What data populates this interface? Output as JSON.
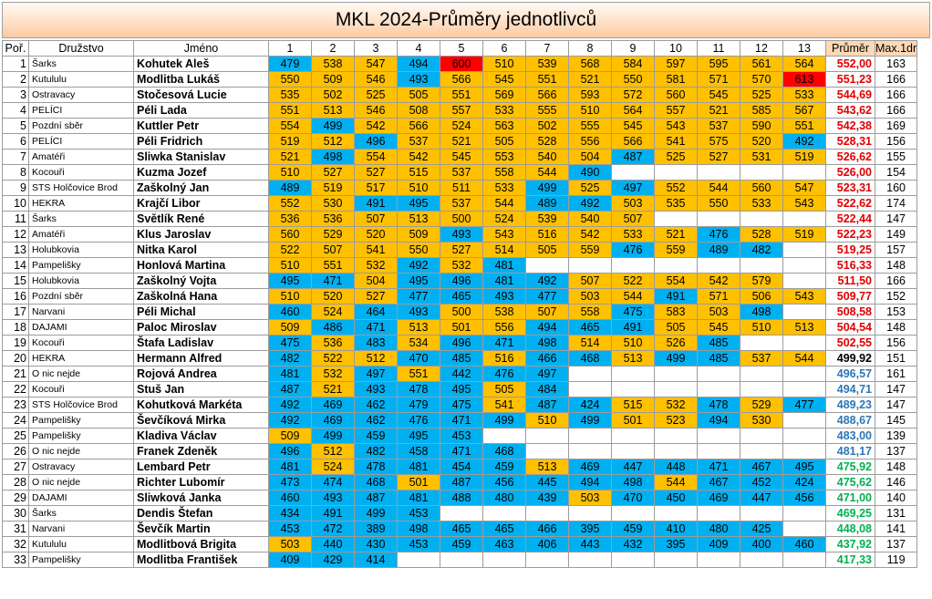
{
  "title": "MKL 2024-Průměry jednotlivců",
  "headers": {
    "por": "Poř.",
    "team": "Družstvo",
    "name": "Jméno",
    "rounds": [
      "1",
      "2",
      "3",
      "4",
      "5",
      "6",
      "7",
      "8",
      "9",
      "10",
      "11",
      "12",
      "13"
    ],
    "avg": "Průměr",
    "max": "Max.1dr"
  },
  "colors": {
    "above_avg": "#ffc000",
    "below_avg": "#00b0f0",
    "best": "#ff0000",
    "avg_red": "#e00000",
    "avg_black": "#000000",
    "avg_blue": "#2e75b6",
    "avg_green": "#00b050"
  },
  "rows": [
    {
      "por": "1",
      "team": "Šarks",
      "name": "Kohutek Aleš",
      "scores": [
        "479",
        "538",
        "547",
        "494",
        "600",
        "510",
        "539",
        "568",
        "584",
        "597",
        "595",
        "561",
        "564"
      ],
      "colors": [
        "b",
        "o",
        "o",
        "b",
        "r",
        "o",
        "o",
        "o",
        "o",
        "o",
        "o",
        "o",
        "o"
      ],
      "avg": "552,00",
      "avg_color": "red",
      "max": "163"
    },
    {
      "por": "2",
      "team": "Kutululu",
      "name": "Modlitba Lukáš",
      "scores": [
        "550",
        "509",
        "546",
        "493",
        "566",
        "545",
        "551",
        "521",
        "550",
        "581",
        "571",
        "570",
        "613"
      ],
      "colors": [
        "o",
        "o",
        "o",
        "b",
        "o",
        "o",
        "o",
        "o",
        "o",
        "o",
        "o",
        "o",
        "r"
      ],
      "avg": "551,23",
      "avg_color": "red",
      "max": "166"
    },
    {
      "por": "3",
      "team": "Ostravacy",
      "name": "Stočesová Lucie",
      "scores": [
        "535",
        "502",
        "525",
        "505",
        "551",
        "569",
        "566",
        "593",
        "572",
        "560",
        "545",
        "525",
        "533"
      ],
      "colors": [
        "o",
        "o",
        "o",
        "o",
        "o",
        "o",
        "o",
        "o",
        "o",
        "o",
        "o",
        "o",
        "o"
      ],
      "avg": "544,69",
      "avg_color": "red",
      "max": "166"
    },
    {
      "por": "4",
      "team": "PELÍCI",
      "name": "Péli Lada",
      "scores": [
        "551",
        "513",
        "546",
        "508",
        "557",
        "533",
        "555",
        "510",
        "564",
        "557",
        "521",
        "585",
        "567"
      ],
      "colors": [
        "o",
        "o",
        "o",
        "o",
        "o",
        "o",
        "o",
        "o",
        "o",
        "o",
        "o",
        "o",
        "o"
      ],
      "avg": "543,62",
      "avg_color": "red",
      "max": "166"
    },
    {
      "por": "5",
      "team": "Pozdní sběr",
      "name": "Kuttler Petr",
      "scores": [
        "554",
        "499",
        "542",
        "566",
        "524",
        "563",
        "502",
        "555",
        "545",
        "543",
        "537",
        "590",
        "551"
      ],
      "colors": [
        "o",
        "b",
        "o",
        "o",
        "o",
        "o",
        "o",
        "o",
        "o",
        "o",
        "o",
        "o",
        "o"
      ],
      "avg": "542,38",
      "avg_color": "red",
      "max": "169"
    },
    {
      "por": "6",
      "team": "PELÍCI",
      "name": "Péli Fridrich",
      "scores": [
        "519",
        "512",
        "496",
        "537",
        "521",
        "505",
        "528",
        "556",
        "566",
        "541",
        "575",
        "520",
        "492"
      ],
      "colors": [
        "o",
        "o",
        "b",
        "o",
        "o",
        "o",
        "o",
        "o",
        "o",
        "o",
        "o",
        "o",
        "b"
      ],
      "avg": "528,31",
      "avg_color": "red",
      "max": "156"
    },
    {
      "por": "7",
      "team": "Amatéři",
      "name": "Sliwka Stanislav",
      "scores": [
        "521",
        "498",
        "554",
        "542",
        "545",
        "553",
        "540",
        "504",
        "487",
        "525",
        "527",
        "531",
        "519"
      ],
      "colors": [
        "o",
        "b",
        "o",
        "o",
        "o",
        "o",
        "o",
        "o",
        "b",
        "o",
        "o",
        "o",
        "o"
      ],
      "avg": "526,62",
      "avg_color": "red",
      "max": "155"
    },
    {
      "por": "8",
      "team": "Kocouři",
      "name": "Kuzma Jozef",
      "scores": [
        "510",
        "527",
        "527",
        "515",
        "537",
        "558",
        "544",
        "490",
        "",
        "",
        "",
        "",
        ""
      ],
      "colors": [
        "o",
        "o",
        "o",
        "o",
        "o",
        "o",
        "o",
        "b",
        "w",
        "w",
        "w",
        "w",
        "w"
      ],
      "avg": "526,00",
      "avg_color": "red",
      "max": "154"
    },
    {
      "por": "9",
      "team": "STS Holčovice Brod",
      "name": "Zaškolný Jan",
      "scores": [
        "489",
        "519",
        "517",
        "510",
        "511",
        "533",
        "499",
        "525",
        "497",
        "552",
        "544",
        "560",
        "547"
      ],
      "colors": [
        "b",
        "o",
        "o",
        "o",
        "o",
        "o",
        "b",
        "o",
        "b",
        "o",
        "o",
        "o",
        "o"
      ],
      "avg": "523,31",
      "avg_color": "red",
      "max": "160"
    },
    {
      "por": "10",
      "team": "HEKRA",
      "name": "Krajčí Libor",
      "scores": [
        "552",
        "530",
        "491",
        "495",
        "537",
        "544",
        "489",
        "492",
        "503",
        "535",
        "550",
        "533",
        "543"
      ],
      "colors": [
        "o",
        "o",
        "b",
        "b",
        "o",
        "o",
        "b",
        "b",
        "o",
        "o",
        "o",
        "o",
        "o"
      ],
      "avg": "522,62",
      "avg_color": "red",
      "max": "174"
    },
    {
      "por": "11",
      "team": "Šarks",
      "name": "Světlík René",
      "scores": [
        "536",
        "536",
        "507",
        "513",
        "500",
        "524",
        "539",
        "540",
        "507",
        "",
        "",
        "",
        ""
      ],
      "colors": [
        "o",
        "o",
        "o",
        "o",
        "o",
        "o",
        "o",
        "o",
        "o",
        "w",
        "w",
        "w",
        "w"
      ],
      "avg": "522,44",
      "avg_color": "red",
      "max": "147"
    },
    {
      "por": "12",
      "team": "Amatéři",
      "name": "Klus Jaroslav",
      "scores": [
        "560",
        "529",
        "520",
        "509",
        "493",
        "543",
        "516",
        "542",
        "533",
        "521",
        "476",
        "528",
        "519"
      ],
      "colors": [
        "o",
        "o",
        "o",
        "o",
        "b",
        "o",
        "o",
        "o",
        "o",
        "o",
        "b",
        "o",
        "o"
      ],
      "avg": "522,23",
      "avg_color": "red",
      "max": "149"
    },
    {
      "por": "13",
      "team": "Holubkovia",
      "name": "Nitka Karol",
      "scores": [
        "522",
        "507",
        "541",
        "550",
        "527",
        "514",
        "505",
        "559",
        "476",
        "559",
        "489",
        "482",
        ""
      ],
      "colors": [
        "o",
        "o",
        "o",
        "o",
        "o",
        "o",
        "o",
        "o",
        "b",
        "o",
        "b",
        "b",
        "w"
      ],
      "avg": "519,25",
      "avg_color": "red",
      "max": "157"
    },
    {
      "por": "14",
      "team": "Pampelišky",
      "name": "Honlová Martina",
      "scores": [
        "510",
        "551",
        "532",
        "492",
        "532",
        "481",
        "",
        "",
        "",
        "",
        "",
        "",
        ""
      ],
      "colors": [
        "o",
        "o",
        "o",
        "b",
        "o",
        "b",
        "w",
        "w",
        "w",
        "w",
        "w",
        "w",
        "w"
      ],
      "avg": "516,33",
      "avg_color": "red",
      "max": "148"
    },
    {
      "por": "15",
      "team": "Holubkovia",
      "name": "Zaškolný Vojta",
      "scores": [
        "495",
        "471",
        "504",
        "495",
        "496",
        "481",
        "492",
        "507",
        "522",
        "554",
        "542",
        "579",
        ""
      ],
      "colors": [
        "b",
        "b",
        "o",
        "b",
        "b",
        "b",
        "b",
        "o",
        "o",
        "o",
        "o",
        "o",
        "w"
      ],
      "avg": "511,50",
      "avg_color": "red",
      "max": "166"
    },
    {
      "por": "16",
      "team": "Pozdní sběr",
      "name": "Zaškolná Hana",
      "scores": [
        "510",
        "520",
        "527",
        "477",
        "465",
        "493",
        "477",
        "503",
        "544",
        "491",
        "571",
        "506",
        "543"
      ],
      "colors": [
        "o",
        "o",
        "o",
        "b",
        "b",
        "b",
        "b",
        "o",
        "o",
        "b",
        "o",
        "o",
        "o"
      ],
      "avg": "509,77",
      "avg_color": "red",
      "max": "152"
    },
    {
      "por": "17",
      "team": "Narvani",
      "name": "Péli Michal",
      "scores": [
        "460",
        "524",
        "464",
        "493",
        "500",
        "538",
        "507",
        "558",
        "475",
        "583",
        "503",
        "498",
        ""
      ],
      "colors": [
        "b",
        "o",
        "b",
        "b",
        "o",
        "o",
        "o",
        "o",
        "b",
        "o",
        "o",
        "b",
        "w"
      ],
      "avg": "508,58",
      "avg_color": "red",
      "max": "153"
    },
    {
      "por": "18",
      "team": "DAJAMI",
      "name": "Paloc Miroslav",
      "scores": [
        "509",
        "486",
        "471",
        "513",
        "501",
        "556",
        "494",
        "465",
        "491",
        "505",
        "545",
        "510",
        "513"
      ],
      "colors": [
        "o",
        "b",
        "b",
        "o",
        "o",
        "o",
        "b",
        "b",
        "b",
        "o",
        "o",
        "o",
        "o"
      ],
      "avg": "504,54",
      "avg_color": "red",
      "max": "148"
    },
    {
      "por": "19",
      "team": "Kocouři",
      "name": "Štafa Ladislav",
      "scores": [
        "475",
        "536",
        "483",
        "534",
        "496",
        "471",
        "498",
        "514",
        "510",
        "526",
        "485",
        "",
        ""
      ],
      "colors": [
        "b",
        "o",
        "b",
        "o",
        "b",
        "b",
        "b",
        "o",
        "o",
        "o",
        "b",
        "w",
        "w"
      ],
      "avg": "502,55",
      "avg_color": "red",
      "max": "156"
    },
    {
      "por": "20",
      "team": "HEKRA",
      "name": "Hermann Alfred",
      "scores": [
        "482",
        "522",
        "512",
        "470",
        "485",
        "516",
        "466",
        "468",
        "513",
        "499",
        "485",
        "537",
        "544"
      ],
      "colors": [
        "b",
        "o",
        "o",
        "b",
        "b",
        "o",
        "b",
        "b",
        "o",
        "b",
        "b",
        "o",
        "o"
      ],
      "avg": "499,92",
      "avg_color": "black",
      "max": "151"
    },
    {
      "por": "21",
      "team": "O nic nejde",
      "name": "Rojová Andrea",
      "scores": [
        "481",
        "532",
        "497",
        "551",
        "442",
        "476",
        "497",
        "",
        "",
        "",
        "",
        "",
        ""
      ],
      "colors": [
        "b",
        "o",
        "b",
        "o",
        "b",
        "b",
        "b",
        "w",
        "w",
        "w",
        "w",
        "w",
        "w"
      ],
      "avg": "496,57",
      "avg_color": "blue",
      "max": "161"
    },
    {
      "por": "22",
      "team": "Kocouři",
      "name": "Stuš Jan",
      "scores": [
        "487",
        "521",
        "493",
        "478",
        "495",
        "505",
        "484",
        "",
        "",
        "",
        "",
        "",
        ""
      ],
      "colors": [
        "b",
        "o",
        "b",
        "b",
        "b",
        "o",
        "b",
        "w",
        "w",
        "w",
        "w",
        "w",
        "w"
      ],
      "avg": "494,71",
      "avg_color": "blue",
      "max": "147"
    },
    {
      "por": "23",
      "team": "STS Holčovice Brod",
      "name": "Kohutková Markéta",
      "scores": [
        "492",
        "469",
        "462",
        "479",
        "475",
        "541",
        "487",
        "424",
        "515",
        "532",
        "478",
        "529",
        "477"
      ],
      "colors": [
        "b",
        "b",
        "b",
        "b",
        "b",
        "o",
        "b",
        "b",
        "o",
        "o",
        "b",
        "o",
        "b"
      ],
      "avg": "489,23",
      "avg_color": "blue",
      "max": "147"
    },
    {
      "por": "24",
      "team": "Pampelišky",
      "name": "Ševčíková Mirka",
      "scores": [
        "492",
        "469",
        "462",
        "476",
        "471",
        "499",
        "510",
        "499",
        "501",
        "523",
        "494",
        "530",
        ""
      ],
      "colors": [
        "b",
        "b",
        "b",
        "b",
        "b",
        "b",
        "o",
        "b",
        "o",
        "o",
        "b",
        "o",
        "w"
      ],
      "avg": "488,67",
      "avg_color": "blue",
      "max": "145"
    },
    {
      "por": "25",
      "team": "Pampelišky",
      "name": "Kladiva Václav",
      "scores": [
        "509",
        "499",
        "459",
        "495",
        "453",
        "",
        "",
        "",
        "",
        "",
        "",
        "",
        ""
      ],
      "colors": [
        "o",
        "b",
        "b",
        "b",
        "b",
        "w",
        "w",
        "w",
        "w",
        "w",
        "w",
        "w",
        "w"
      ],
      "avg": "483,00",
      "avg_color": "blue",
      "max": "139"
    },
    {
      "por": "26",
      "team": "O nic nejde",
      "name": "Franek Zdeněk",
      "scores": [
        "496",
        "512",
        "482",
        "458",
        "471",
        "468",
        "",
        "",
        "",
        "",
        "",
        "",
        ""
      ],
      "colors": [
        "b",
        "o",
        "b",
        "b",
        "b",
        "b",
        "w",
        "w",
        "w",
        "w",
        "w",
        "w",
        "w"
      ],
      "avg": "481,17",
      "avg_color": "blue",
      "max": "137"
    },
    {
      "por": "27",
      "team": "Ostravacy",
      "name": "Lembard Petr",
      "scores": [
        "481",
        "524",
        "478",
        "481",
        "454",
        "459",
        "513",
        "469",
        "447",
        "448",
        "471",
        "467",
        "495"
      ],
      "colors": [
        "b",
        "o",
        "b",
        "b",
        "b",
        "b",
        "o",
        "b",
        "b",
        "b",
        "b",
        "b",
        "b"
      ],
      "avg": "475,92",
      "avg_color": "green",
      "max": "148"
    },
    {
      "por": "28",
      "team": "O nic nejde",
      "name": "Richter Lubomír",
      "scores": [
        "473",
        "474",
        "468",
        "501",
        "487",
        "456",
        "445",
        "494",
        "498",
        "544",
        "467",
        "452",
        "424"
      ],
      "colors": [
        "b",
        "b",
        "b",
        "o",
        "b",
        "b",
        "b",
        "b",
        "b",
        "o",
        "b",
        "b",
        "b"
      ],
      "avg": "475,62",
      "avg_color": "green",
      "max": "146"
    },
    {
      "por": "29",
      "team": "DAJAMI",
      "name": "Sliwková Janka",
      "scores": [
        "460",
        "493",
        "487",
        "481",
        "488",
        "480",
        "439",
        "503",
        "470",
        "450",
        "469",
        "447",
        "456"
      ],
      "colors": [
        "b",
        "b",
        "b",
        "b",
        "b",
        "b",
        "b",
        "o",
        "b",
        "b",
        "b",
        "b",
        "b"
      ],
      "avg": "471,00",
      "avg_color": "green",
      "max": "140"
    },
    {
      "por": "30",
      "team": "Šarks",
      "name": "Dendis Štefan",
      "scores": [
        "434",
        "491",
        "499",
        "453",
        "",
        "",
        "",
        "",
        "",
        "",
        "",
        "",
        ""
      ],
      "colors": [
        "b",
        "b",
        "b",
        "b",
        "w",
        "w",
        "w",
        "w",
        "w",
        "w",
        "w",
        "w",
        "w"
      ],
      "avg": "469,25",
      "avg_color": "green",
      "max": "131"
    },
    {
      "por": "31",
      "team": "Narvani",
      "name": "Ševčík Martin",
      "scores": [
        "453",
        "472",
        "389",
        "498",
        "465",
        "465",
        "466",
        "395",
        "459",
        "410",
        "480",
        "425",
        ""
      ],
      "colors": [
        "b",
        "b",
        "b",
        "b",
        "b",
        "b",
        "b",
        "b",
        "b",
        "b",
        "b",
        "b",
        "w"
      ],
      "avg": "448,08",
      "avg_color": "green",
      "max": "141"
    },
    {
      "por": "32",
      "team": "Kutululu",
      "name": "Modlitbová Brigita",
      "scores": [
        "503",
        "440",
        "430",
        "453",
        "459",
        "463",
        "406",
        "443",
        "432",
        "395",
        "409",
        "400",
        "460"
      ],
      "colors": [
        "o",
        "b",
        "b",
        "b",
        "b",
        "b",
        "b",
        "b",
        "b",
        "b",
        "b",
        "b",
        "b"
      ],
      "avg": "437,92",
      "avg_color": "green",
      "max": "137"
    },
    {
      "por": "33",
      "team": "Pampelišky",
      "name": "Modlitba František",
      "scores": [
        "409",
        "429",
        "414",
        "",
        "",
        "",
        "",
        "",
        "",
        "",
        "",
        "",
        ""
      ],
      "colors": [
        "b",
        "b",
        "b",
        "w",
        "w",
        "w",
        "w",
        "w",
        "w",
        "w",
        "w",
        "w",
        "w"
      ],
      "avg": "417,33",
      "avg_color": "green",
      "max": "119"
    }
  ]
}
